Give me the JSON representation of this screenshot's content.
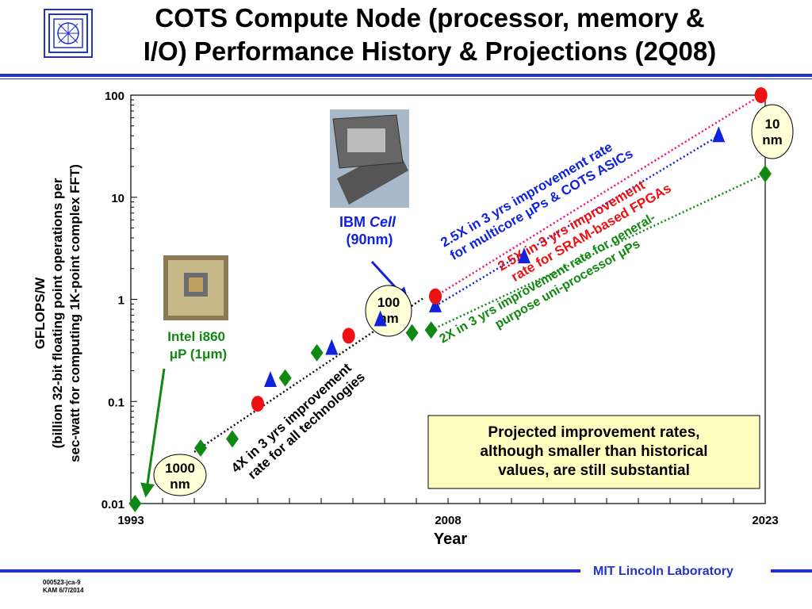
{
  "title": {
    "line1": "COTS Compute Node (processor, memory &",
    "line2": "I/O) Performance History & Projections (2Q08)"
  },
  "footer": {
    "brand": "MIT Lincoln Laboratory",
    "doc_id": "000523-jca-9",
    "author_date": "KAM 6/7/2014"
  },
  "icons": {
    "logo": "lincoln-lab-logo-icon"
  },
  "colors": {
    "accent": "#2233cc",
    "green": "#118811",
    "red": "#ee1111",
    "blue": "#1122dd",
    "annotation_box": "#ffffc0",
    "circle_fill": "#ffffd8"
  },
  "chart_data": {
    "type": "scatter",
    "xlabel": "Year",
    "ylabel_lines": [
      "GFLOPS/W",
      "(billion 32-bit floating point operations per",
      "sec-watt for computing 1K-point complex FFT)"
    ],
    "yscale": "log",
    "ylim": [
      0.01,
      100
    ],
    "xlim": [
      1993,
      2023
    ],
    "x_tick_labels": [
      {
        "x": 1993,
        "label": "1993"
      },
      {
        "x": 2008,
        "label": "2008"
      },
      {
        "x": 2023,
        "label": "2023"
      }
    ],
    "y_tick_labels": [
      {
        "y": 0.01,
        "label": "0.01"
      },
      {
        "y": 0.1,
        "label": "0.1"
      },
      {
        "y": 1,
        "label": "1"
      },
      {
        "y": 10,
        "label": "10"
      },
      {
        "y": 100,
        "label": "100"
      }
    ],
    "series": [
      {
        "marker": "diamond",
        "color": "#118811",
        "points": [
          [
            1993.2,
            0.01
          ],
          [
            1996.3,
            0.035
          ],
          [
            1997.8,
            0.043
          ],
          [
            2000.3,
            0.17
          ],
          [
            2001.8,
            0.3
          ],
          [
            2006.3,
            0.47
          ],
          [
            2007.2,
            0.5
          ],
          [
            2023.0,
            17
          ]
        ]
      },
      {
        "marker": "triangle",
        "color": "#1122dd",
        "points": [
          [
            1999.6,
            0.16
          ],
          [
            2002.5,
            0.33
          ],
          [
            2004.8,
            0.63
          ],
          [
            2007.4,
            0.86
          ],
          [
            2011.6,
            2.6
          ],
          [
            2020.8,
            40
          ]
        ]
      },
      {
        "marker": "circle",
        "color": "#ee1111",
        "points": [
          [
            1999.0,
            0.095
          ],
          [
            2003.3,
            0.44
          ],
          [
            2007.4,
            1.07
          ],
          [
            2022.8,
            100
          ]
        ]
      }
    ],
    "trend_lines": [
      {
        "color": "#111111",
        "from": [
          1996.0,
          0.032
        ],
        "to": [
          2006.9,
          1.05
        ]
      },
      {
        "color": "#118811",
        "from": [
          2007.2,
          0.5
        ],
        "to": [
          2023.0,
          17
        ]
      },
      {
        "color": "#ee1177",
        "from": [
          2007.4,
          1.07
        ],
        "to": [
          2022.8,
          100
        ]
      },
      {
        "color": "#1122dd",
        "from": [
          2007.4,
          0.86
        ],
        "to": [
          2020.8,
          40
        ]
      }
    ],
    "annotations": {
      "historical": [
        "4X in 3 yrs improvement",
        "rate for all technologies"
      ],
      "uniprocessor": [
        "2X in 3 yrs improvement rate for general-",
        "purpose uni-processor μPs"
      ],
      "fpga_pre": "2.5X in 3 yrs improvement",
      "fpga_line2": "rate for ",
      "fpga_emph": "SRAM-based FPGAs",
      "multicore": [
        "2.5X in 3 yrs improvement rate",
        "for multicore μPs & COTS ASICs"
      ],
      "intel": [
        "Intel i860",
        "μP (1μm)"
      ],
      "ibm_prefix": "IBM ",
      "ibm_italic": "Cell",
      "ibm_line2": "(90nm)",
      "node_1000": [
        "1000",
        "nm"
      ],
      "node_100": [
        "100",
        "nm"
      ],
      "node_10": [
        "10",
        "nm"
      ],
      "callout": [
        "Projected improvement rates,",
        "although smaller than historical",
        "values, are still substantial"
      ]
    }
  }
}
